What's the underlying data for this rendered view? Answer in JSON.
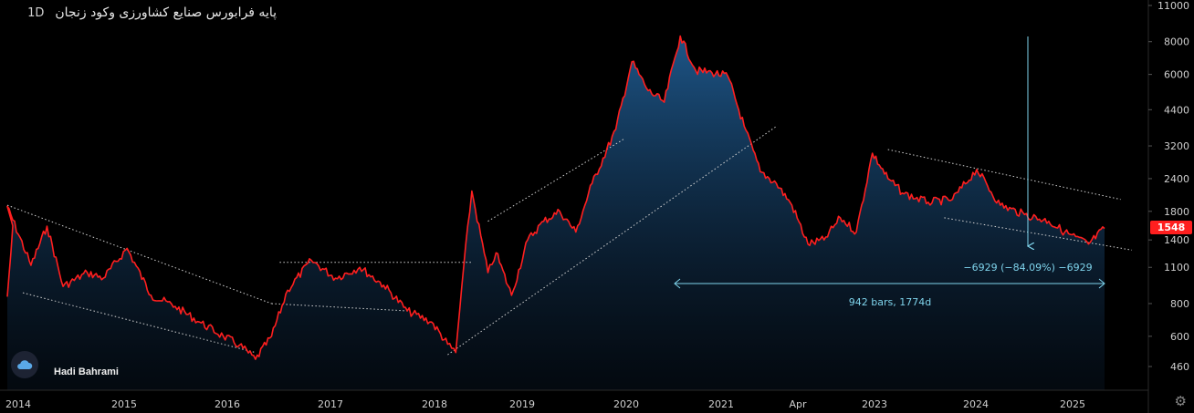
{
  "header": {
    "title": "پایه فرابورس  صنایع کشاورزی وکود زنجان",
    "timeframe": "1D"
  },
  "watermark": {
    "author": "Hadi Bahrami",
    "logo_icon": "cloud-icon"
  },
  "price_label": {
    "value": "1548",
    "color": "#ff1f1f"
  },
  "measure": {
    "change_text": "−6929 (−84.09%) −6929",
    "range_text": "942 bars, 1774d"
  },
  "colors": {
    "price_line": "#ff1f1f",
    "area_top": "#1f5a8f",
    "measure": "#7fd4ec",
    "trendline": "#d0d0d0",
    "axis_text": "#cfcfcf"
  },
  "chart_data": {
    "type": "area",
    "scale": "log",
    "ylim": [
      400,
      11000
    ],
    "y_ticks": [
      "11000",
      "8000",
      "6000",
      "4400",
      "3200",
      "2400",
      "1800",
      "1400",
      "1100",
      "800",
      "600",
      "460"
    ],
    "x_ticks": [
      "2014",
      "2015",
      "2016",
      "2017",
      "2018",
      "2019",
      "2020",
      "2021",
      "Apr",
      "2023",
      "2024",
      "2025"
    ],
    "x": [
      "2014-01",
      "2014-01",
      "2014-04",
      "2014-06",
      "2014-08",
      "2014-11",
      "2015-01",
      "2015-04",
      "2015-07",
      "2015-10",
      "2016-01",
      "2016-04",
      "2016-06",
      "2016-08",
      "2016-10",
      "2016-12",
      "2017-03",
      "2017-06",
      "2017-09",
      "2017-12",
      "2018-03",
      "2018-06",
      "2018-08",
      "2018-09",
      "2018-10",
      "2018-11",
      "2019-01",
      "2019-02",
      "2019-04",
      "2019-06",
      "2019-08",
      "2019-10",
      "2019-12",
      "2020-02",
      "2020-05",
      "2020-07",
      "2020-09",
      "2020-11",
      "2021-01",
      "2021-03",
      "2021-05",
      "2021-07",
      "2021-09",
      "2021-11",
      "2022-01",
      "2022-03",
      "2022-05",
      "2022-07",
      "2022-09",
      "2022-11",
      "2023-01",
      "2023-03",
      "2023-05",
      "2023-08",
      "2023-11",
      "2024-02",
      "2024-05",
      "2024-08",
      "2024-11",
      "2025-01",
      "2025-04",
      "2025-06"
    ],
    "values": [
      850,
      1880,
      1120,
      1580,
      930,
      1050,
      1000,
      1300,
      860,
      780,
      680,
      600,
      555,
      490,
      600,
      900,
      1170,
      1000,
      1100,
      940,
      750,
      680,
      560,
      520,
      1100,
      2150,
      1050,
      1250,
      860,
      1400,
      1650,
      1800,
      1500,
      2300,
      3700,
      6700,
      5200,
      4700,
      8400,
      6200,
      6100,
      5900,
      3800,
      2550,
      2300,
      1900,
      1350,
      1400,
      1700,
      1500,
      3000,
      2400,
      2100,
      1950,
      2000,
      2600,
      1900,
      1750,
      1650,
      1500,
      1350,
      1548
    ],
    "series": [
      {
        "values": "see values"
      }
    ],
    "trendlines": [
      {
        "from": [
          "2014-01",
          1900
        ],
        "to": [
          "2016-10",
          800
        ]
      },
      {
        "from": [
          "2014-03",
          880
        ],
        "to": [
          "2016-08",
          520
        ]
      },
      {
        "from": [
          "2016-10",
          800
        ],
        "to": [
          "2018-03",
          750
        ]
      },
      {
        "from": [
          "2016-11",
          1150
        ],
        "to": [
          "2018-11",
          1150
        ]
      },
      {
        "from": [
          "2018-08",
          510
        ],
        "to": [
          "2022-01",
          3800
        ]
      },
      {
        "from": [
          "2019-01",
          1650
        ],
        "to": [
          "2020-06",
          3400
        ]
      },
      {
        "from": [
          "2023-03",
          3100
        ],
        "to": [
          "2025-08",
          2000
        ]
      },
      {
        "from": [
          "2023-10",
          1700
        ],
        "to": [
          "2025-10",
          1280
        ]
      }
    ],
    "grid": false,
    "legend": "none"
  }
}
